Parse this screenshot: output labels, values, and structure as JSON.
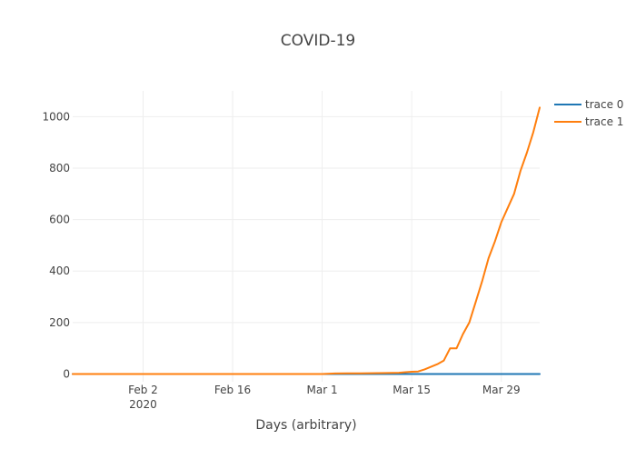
{
  "chart_data": {
    "type": "line",
    "title": "COVID-19",
    "xlabel": "Days (arbitrary)",
    "ylabel": "",
    "x_axis_type": "date",
    "xlim": [
      "2020-01-22",
      "2020-04-04"
    ],
    "ylim": [
      -30,
      1100
    ],
    "x_ticks": [
      {
        "value": "2020-02-02",
        "label": "Feb 2",
        "sublabel": "2020"
      },
      {
        "value": "2020-02-16",
        "label": "Feb 16",
        "sublabel": ""
      },
      {
        "value": "2020-03-01",
        "label": "Mar 1",
        "sublabel": ""
      },
      {
        "value": "2020-03-15",
        "label": "Mar 15",
        "sublabel": ""
      },
      {
        "value": "2020-03-29",
        "label": "Mar 29",
        "sublabel": ""
      }
    ],
    "y_ticks": [
      0,
      200,
      400,
      600,
      800,
      1000
    ],
    "grid": true,
    "legend_position": "top-right",
    "series": [
      {
        "name": "trace 0",
        "color": "#1f77b4",
        "points": [
          [
            "2020-01-22",
            0
          ],
          [
            "2020-02-15",
            0
          ],
          [
            "2020-03-10",
            0
          ],
          [
            "2020-04-04",
            0
          ]
        ]
      },
      {
        "name": "trace 1",
        "color": "#ff7f0e",
        "points": [
          [
            "2020-01-22",
            0
          ],
          [
            "2020-02-10",
            0
          ],
          [
            "2020-03-01",
            0
          ],
          [
            "2020-03-03",
            2
          ],
          [
            "2020-03-07",
            3
          ],
          [
            "2020-03-11",
            4
          ],
          [
            "2020-03-13",
            5
          ],
          [
            "2020-03-14",
            7
          ],
          [
            "2020-03-15",
            9
          ],
          [
            "2020-03-16",
            10
          ],
          [
            "2020-03-17",
            18
          ],
          [
            "2020-03-18",
            28
          ],
          [
            "2020-03-19",
            38
          ],
          [
            "2020-03-20",
            52
          ],
          [
            "2020-03-21",
            100
          ],
          [
            "2020-03-22",
            100
          ],
          [
            "2020-03-23",
            155
          ],
          [
            "2020-03-24",
            200
          ],
          [
            "2020-03-25",
            280
          ],
          [
            "2020-03-26",
            360
          ],
          [
            "2020-03-27",
            450
          ],
          [
            "2020-03-28",
            515
          ],
          [
            "2020-03-29",
            590
          ],
          [
            "2020-03-30",
            645
          ],
          [
            "2020-03-31",
            700
          ],
          [
            "2020-04-01",
            790
          ],
          [
            "2020-04-02",
            860
          ],
          [
            "2020-04-03",
            940
          ],
          [
            "2020-04-04",
            1035
          ]
        ]
      }
    ]
  }
}
